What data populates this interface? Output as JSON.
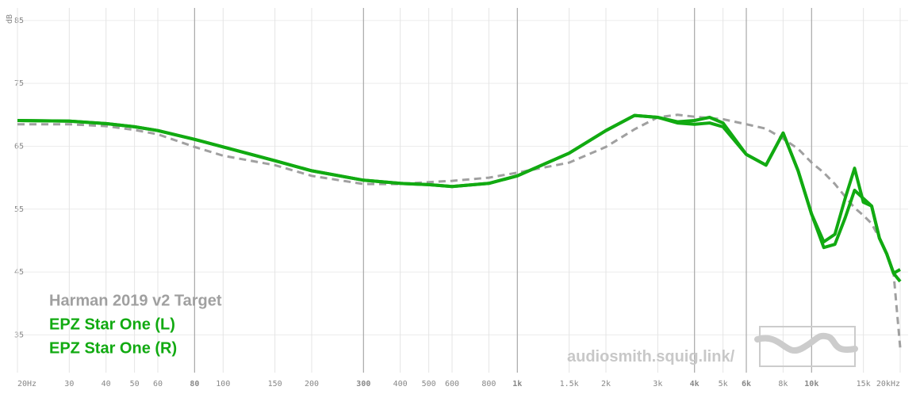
{
  "chart_data": {
    "type": "line",
    "log_x": true,
    "grid": true,
    "y_label": "dB",
    "watermark": "audiosmith.squig.link/",
    "x": [
      20,
      30,
      40,
      50,
      60,
      80,
      100,
      150,
      200,
      300,
      400,
      500,
      600,
      800,
      1000,
      1500,
      2000,
      2500,
      3000,
      3500,
      4000,
      4500,
      5000,
      6000,
      7000,
      8000,
      9000,
      10000,
      11000,
      12000,
      13000,
      14000,
      15000,
      16000,
      17000,
      18000,
      19000,
      20000
    ],
    "series": [
      {
        "name": "Harman 2019 v2 Target",
        "color": "#a0a0a0",
        "dashed": true,
        "values": [
          68.5,
          68.5,
          68.2,
          67.6,
          66.9,
          64.9,
          63.5,
          62.0,
          60.3,
          59.0,
          59.0,
          59.3,
          59.5,
          60.0,
          60.8,
          62.4,
          64.9,
          67.7,
          69.6,
          70.0,
          69.7,
          69.5,
          69.3,
          68.5,
          67.8,
          66.2,
          64.6,
          62.4,
          60.8,
          59.0,
          57.0,
          55.2,
          54.0,
          52.7,
          50.4,
          47.9,
          44.8,
          33.0
        ]
      },
      {
        "name": "EPZ Star One (L)",
        "color": "#11aa11",
        "values": [
          69.1,
          69.0,
          68.6,
          68.1,
          67.5,
          66.1,
          64.9,
          62.7,
          61.1,
          59.6,
          59.1,
          58.9,
          58.6,
          59.1,
          60.3,
          63.9,
          67.5,
          69.9,
          69.6,
          68.7,
          68.5,
          68.7,
          68.1,
          63.7,
          62.0,
          67.1,
          61.1,
          54.2,
          49.8,
          51.0,
          56.7,
          61.5,
          56.1,
          55.5,
          50.4,
          47.9,
          44.8,
          43.5
        ]
      },
      {
        "name": "EPZ Star One (R)",
        "color": "#11aa11",
        "values": [
          69.1,
          69.0,
          68.6,
          68.1,
          67.5,
          66.1,
          64.9,
          62.7,
          61.1,
          59.6,
          59.1,
          58.9,
          58.6,
          59.1,
          60.3,
          63.9,
          67.5,
          69.9,
          69.6,
          68.9,
          69.1,
          69.6,
          68.7,
          63.7,
          62.0,
          67.1,
          61.1,
          54.2,
          48.9,
          49.4,
          53.6,
          58.0,
          56.7,
          55.5,
          50.4,
          47.9,
          44.8,
          45.4
        ]
      }
    ],
    "xlim": [
      20,
      20000
    ],
    "xticks": [
      {
        "value": 20,
        "label": "20Hz"
      },
      30,
      40,
      50,
      60,
      80,
      100,
      150,
      200,
      300,
      400,
      500,
      600,
      800,
      {
        "value": 1000,
        "label": "1k"
      },
      {
        "value": 1500,
        "label": "1.5k"
      },
      {
        "value": 2000,
        "label": "2k"
      },
      {
        "value": 3000,
        "label": "3k"
      },
      {
        "value": 4000,
        "label": "4k"
      },
      {
        "value": 5000,
        "label": "5k"
      },
      {
        "value": 6000,
        "label": "6k"
      },
      {
        "value": 8000,
        "label": "8k"
      },
      {
        "value": 10000,
        "label": "10k"
      },
      {
        "value": 15000,
        "label": "15k"
      },
      {
        "value": 20000,
        "label": "20kHz"
      }
    ],
    "strong_xticks": [
      80,
      300,
      1000,
      4000,
      6000,
      10000
    ],
    "ylim": [
      29,
      87
    ],
    "yticks": [
      35,
      45,
      55,
      65,
      75,
      85
    ]
  }
}
